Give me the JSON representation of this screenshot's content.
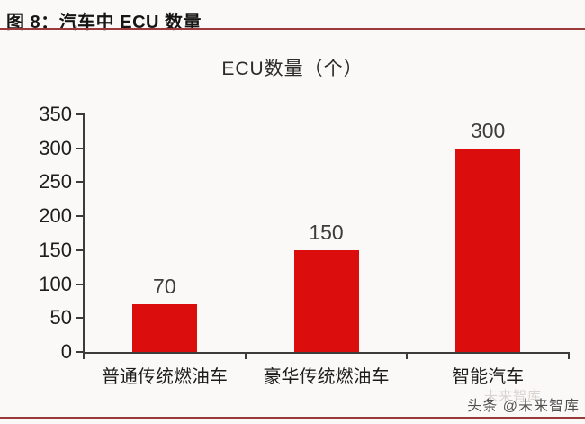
{
  "page": {
    "header": {
      "title": "图 8：汽车中 ECU 数量"
    },
    "watermark": "头条 @未来智库",
    "watermark_ghost": "未来智库",
    "colors": {
      "background": "#fbf9f8",
      "bar": "#db0d0d",
      "accent_rule": "#9a3a3a",
      "axis": "#3c3c3c"
    }
  },
  "chart_data": {
    "type": "bar",
    "title": "ECU数量（个）",
    "categories": [
      "普通传统燃油车",
      "豪华传统燃油车",
      "智能汽车"
    ],
    "values": [
      70,
      150,
      300
    ],
    "data_labels": [
      70,
      150,
      300
    ],
    "xlabel": "",
    "ylabel": "",
    "ylim": [
      0,
      350
    ],
    "yticks": [
      0,
      50,
      100,
      150,
      200,
      250,
      300,
      350
    ],
    "grid": false,
    "legend_position": "none",
    "bar_color": "#db0d0d"
  }
}
